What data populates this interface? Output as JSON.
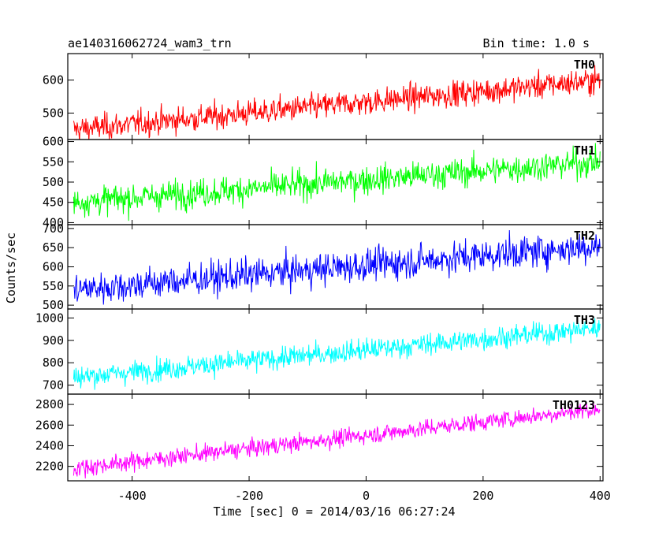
{
  "chart_data": {
    "type": "line",
    "title": "ae140316062724_wam3_trn",
    "subtitle": "Bin time: 1.0 s",
    "xlabel": "Time [sec] 0 = 2014/03/16 06:27:24",
    "ylabel": "Counts/sec",
    "xlim": [
      -510,
      405
    ],
    "xticks": [
      -400,
      -200,
      0,
      200,
      400
    ],
    "grid": false,
    "panels": [
      {
        "name": "TH0",
        "color": "#ff0000",
        "ylim": [
          420,
          680
        ],
        "yticks": [
          500,
          600
        ],
        "trend": {
          "x": [
            -500,
            400
          ],
          "y": [
            450,
            600
          ]
        },
        "noise": 28
      },
      {
        "name": "TH1",
        "color": "#00ff00",
        "ylim": [
          395,
          605
        ],
        "yticks": [
          400,
          450,
          500,
          550,
          600
        ],
        "trend": {
          "x": [
            -500,
            400
          ],
          "y": [
            450,
            550
          ]
        },
        "noise": 25
      },
      {
        "name": "TH2",
        "color": "#0000ff",
        "ylim": [
          490,
          710
        ],
        "yticks": [
          500,
          550,
          600,
          650,
          700
        ],
        "trend": {
          "x": [
            -500,
            400
          ],
          "y": [
            540,
            655
          ]
        },
        "noise": 30
      },
      {
        "name": "TH3",
        "color": "#00ffff",
        "ylim": [
          660,
          1040
        ],
        "yticks": [
          700,
          800,
          900,
          1000
        ],
        "trend": {
          "x": [
            -500,
            400
          ],
          "y": [
            735,
            955
          ]
        },
        "noise": 35
      },
      {
        "name": "TH0123",
        "color": "#ff00ff",
        "ylim": [
          2060,
          2900
        ],
        "yticks": [
          2200,
          2400,
          2600,
          2800
        ],
        "trend": {
          "x": [
            -500,
            400
          ],
          "y": [
            2180,
            2760
          ]
        },
        "noise": 60
      }
    ]
  }
}
